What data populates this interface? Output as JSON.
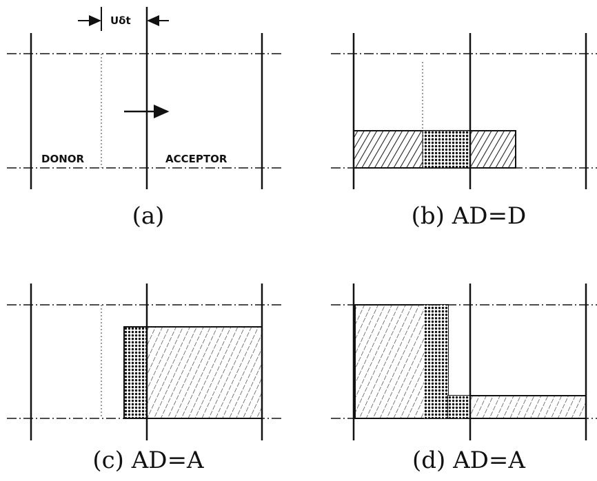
{
  "panels": [
    {
      "dimension_label": "Uδt",
      "donor_label": "DONOR",
      "acceptor_label": "ACCEPTOR",
      "caption": "(a)"
    },
    {
      "caption": "(b)  AD=D"
    },
    {
      "caption": "(c)  AD=A"
    },
    {
      "caption": "(d)  AD=A"
    }
  ]
}
